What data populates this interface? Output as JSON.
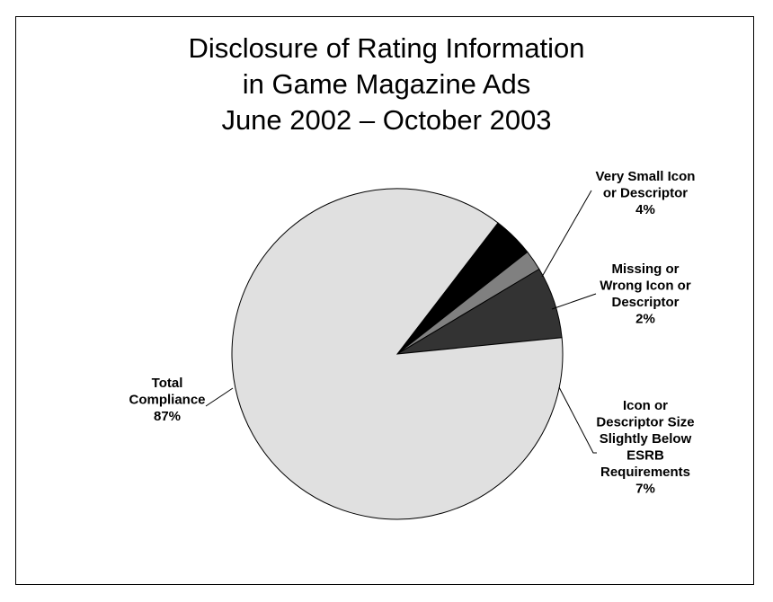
{
  "chart_data": {
    "type": "pie",
    "title": [
      "Disclosure of Rating Information",
      "in Game Magazine Ads",
      "June 2002 – October 2003"
    ],
    "slices": [
      {
        "label": [
          "Very Small Icon",
          "or Descriptor"
        ],
        "value": 4,
        "value_label": "4%",
        "color": "#000000"
      },
      {
        "label": [
          "Missing or",
          "Wrong Icon or",
          "Descriptor"
        ],
        "value": 2,
        "value_label": "2%",
        "color": "#808080"
      },
      {
        "label": [
          "Icon or",
          "Descriptor Size",
          "Slightly Below",
          "ESRB",
          "Requirements"
        ],
        "value": 7,
        "value_label": "7%",
        "color": "#333333"
      },
      {
        "label": [
          "Total",
          "Compliance"
        ],
        "value": 87,
        "value_label": "87%",
        "color": "#e0e0e0"
      }
    ]
  }
}
